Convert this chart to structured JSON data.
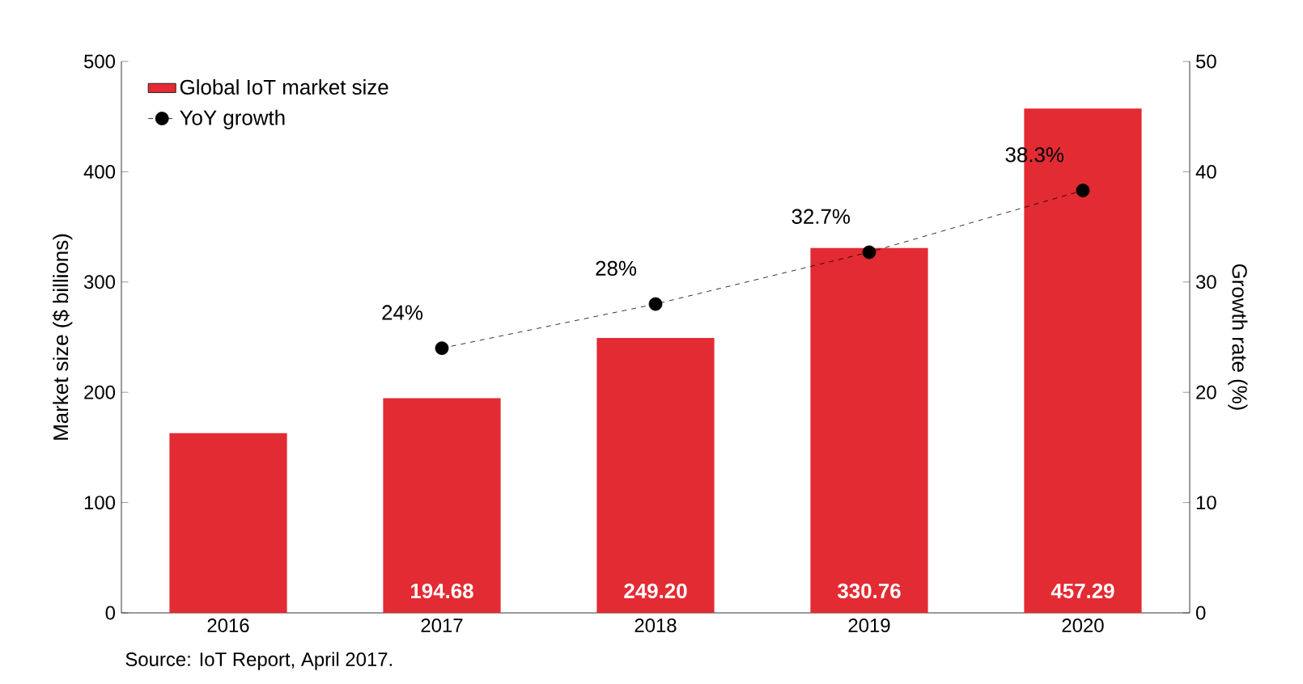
{
  "chart_data": {
    "type": "bar",
    "categories": [
      "2016",
      "2017",
      "2018",
      "2019",
      "2020"
    ],
    "ylabel": "Market size ($ billions)",
    "y2label": "Growth rate (%)",
    "ylim": [
      0,
      500
    ],
    "yticks": [
      0,
      100,
      200,
      300,
      400,
      500
    ],
    "y2lim": [
      0,
      50
    ],
    "y2ticks": [
      0,
      10,
      20,
      30,
      40,
      50
    ],
    "series": [
      {
        "name": "Global IoT market size",
        "color": "#e32b33",
        "values": [
          163,
          194.68,
          249.2,
          330.76,
          457.29
        ],
        "value_labels": [
          null,
          "194.68",
          "249.20",
          "330.76",
          "457.29"
        ]
      },
      {
        "name": "YoY growth",
        "type": "line",
        "axis": "y2",
        "color": "#000000",
        "marker": "circle",
        "line_style": "dashed",
        "values": [
          null,
          24,
          28,
          32.7,
          38.3
        ],
        "value_labels": [
          null,
          "24%",
          "28%",
          "32.7%",
          "38.3%"
        ]
      }
    ],
    "legend": "top left",
    "grid": false,
    "annotations": [
      "Source: IoT Report, April 2017."
    ]
  }
}
